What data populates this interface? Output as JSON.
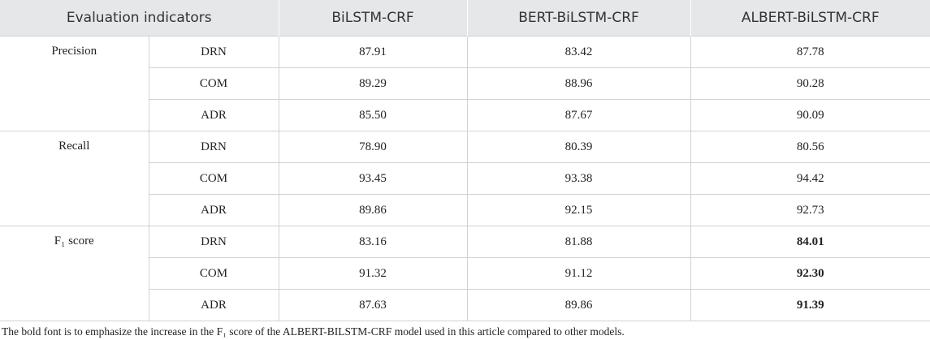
{
  "table": {
    "header": [
      "Evaluation indicators",
      "BiLSTM-CRF",
      "BERT-BiLSTM-CRF",
      "ALBERT-BiLSTM-CRF"
    ],
    "groups": [
      {
        "metric": "Precision",
        "bold_last": false,
        "rows": [
          [
            "DRN",
            "87.91",
            "83.42",
            "87.78"
          ],
          [
            "COM",
            "89.29",
            "88.96",
            "90.28"
          ],
          [
            "ADR",
            "85.50",
            "87.67",
            "90.09"
          ]
        ]
      },
      {
        "metric": "Recall",
        "bold_last": false,
        "rows": [
          [
            "DRN",
            "78.90",
            "80.39",
            "80.56"
          ],
          [
            "COM",
            "93.45",
            "93.38",
            "94.42"
          ],
          [
            "ADR",
            "89.86",
            "92.15",
            "92.73"
          ]
        ]
      },
      {
        "metric": "F₁ score",
        "bold_last": true,
        "rows": [
          [
            "DRN",
            "83.16",
            "81.88",
            "84.01"
          ],
          [
            "COM",
            "91.32",
            "91.12",
            "92.30"
          ],
          [
            "ADR",
            "87.63",
            "89.86",
            "91.39"
          ]
        ]
      }
    ],
    "note": "The bold font is to emphasize the increase in the F₁ score of the ALBERT-BILSTM-CRF model used in this article compared to other models."
  }
}
